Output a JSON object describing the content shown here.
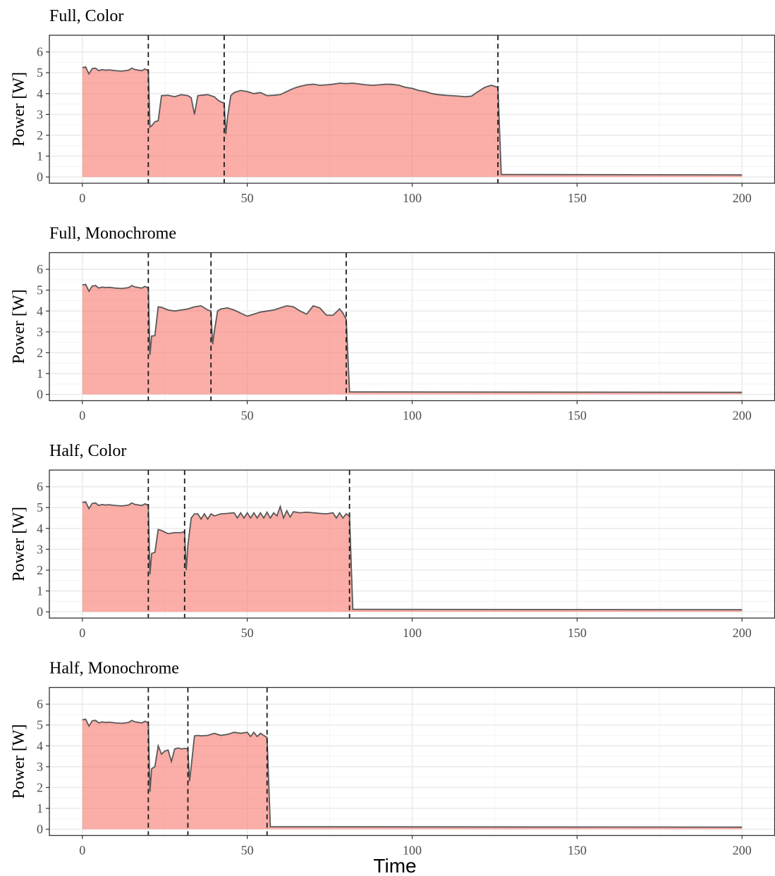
{
  "figure": {
    "xlabel": "Time",
    "colors": {
      "fill": "#f8766d",
      "fill_opacity": 0.6,
      "line": "#595959",
      "vline": "#1a1a1a",
      "grid_major": "#ebebeb",
      "grid_minor": "#f5f5f5",
      "panel_border": "#333333"
    }
  },
  "chart_data": [
    {
      "type": "area",
      "title": "Full, Color",
      "xlabel": "",
      "ylabel": "Power [W]",
      "xlim": [
        -10,
        210
      ],
      "ylim": [
        -0.3,
        6.8
      ],
      "xticks": [
        0,
        50,
        100,
        150,
        200
      ],
      "yticks": [
        0,
        1,
        2,
        3,
        4,
        5,
        6
      ],
      "grid": true,
      "vlines": [
        20,
        43,
        126
      ],
      "series": [
        {
          "x": [
            0,
            1,
            2,
            3,
            4,
            5,
            6,
            7,
            8,
            10,
            12,
            14,
            15,
            16,
            18,
            19,
            20,
            20.5,
            21,
            22,
            23,
            24,
            26,
            28,
            30,
            32,
            33,
            34,
            35,
            36,
            38,
            40,
            41,
            42,
            43,
            43.5,
            44,
            45,
            46,
            48,
            50,
            52,
            54,
            56,
            58,
            60,
            62,
            64,
            66,
            68,
            70,
            72,
            74,
            76,
            78,
            80,
            82,
            84,
            86,
            88,
            90,
            92,
            94,
            96,
            98,
            100,
            102,
            104,
            106,
            108,
            110,
            112,
            114,
            116,
            118,
            120,
            122,
            124,
            125,
            126,
            127,
            200
          ],
          "y": [
            5.25,
            5.28,
            4.95,
            5.2,
            5.22,
            5.1,
            5.15,
            5.12,
            5.14,
            5.1,
            5.08,
            5.12,
            5.22,
            5.15,
            5.1,
            5.18,
            5.1,
            2.4,
            2.45,
            2.65,
            2.7,
            3.9,
            3.92,
            3.85,
            3.95,
            3.9,
            3.8,
            3.0,
            3.9,
            3.92,
            3.95,
            3.85,
            3.7,
            3.6,
            3.55,
            2.05,
            2.85,
            3.9,
            4.05,
            4.15,
            4.1,
            4.0,
            4.05,
            3.9,
            3.92,
            3.95,
            4.1,
            4.25,
            4.35,
            4.42,
            4.45,
            4.4,
            4.42,
            4.45,
            4.5,
            4.48,
            4.5,
            4.46,
            4.42,
            4.4,
            4.42,
            4.45,
            4.44,
            4.4,
            4.3,
            4.25,
            4.15,
            4.1,
            4.0,
            3.95,
            3.92,
            3.9,
            3.88,
            3.85,
            3.88,
            4.1,
            4.3,
            4.4,
            4.35,
            4.3,
            0.12,
            0.1
          ]
        }
      ]
    },
    {
      "type": "area",
      "title": "Full, Monochrome",
      "xlabel": "",
      "ylabel": "Power [W]",
      "xlim": [
        -10,
        210
      ],
      "ylim": [
        -0.3,
        6.8
      ],
      "xticks": [
        0,
        50,
        100,
        150,
        200
      ],
      "yticks": [
        0,
        1,
        2,
        3,
        4,
        5,
        6
      ],
      "grid": true,
      "vlines": [
        20,
        39,
        80
      ],
      "series": [
        {
          "x": [
            0,
            1,
            2,
            3,
            4,
            5,
            6,
            7,
            8,
            10,
            12,
            14,
            15,
            16,
            18,
            19,
            20,
            20.5,
            21,
            22,
            23,
            24,
            26,
            28,
            30,
            32,
            34,
            36,
            38,
            39,
            39.5,
            40,
            41,
            42,
            44,
            46,
            48,
            50,
            52,
            54,
            56,
            58,
            60,
            62,
            64,
            66,
            68,
            70,
            72,
            74,
            76,
            78,
            79,
            80,
            81,
            200
          ],
          "y": [
            5.25,
            5.28,
            4.95,
            5.2,
            5.22,
            5.1,
            5.15,
            5.12,
            5.14,
            5.1,
            5.08,
            5.12,
            5.22,
            5.15,
            5.1,
            5.18,
            5.1,
            1.9,
            2.8,
            2.82,
            4.2,
            4.18,
            4.05,
            4.0,
            4.05,
            4.1,
            4.2,
            4.25,
            4.05,
            4.0,
            2.4,
            3.0,
            4.0,
            4.1,
            4.15,
            4.05,
            3.9,
            3.75,
            3.85,
            3.95,
            4.0,
            4.05,
            4.15,
            4.25,
            4.2,
            4.0,
            3.85,
            4.25,
            4.15,
            3.8,
            3.8,
            4.1,
            3.9,
            3.6,
            0.12,
            0.1
          ]
        }
      ]
    },
    {
      "type": "area",
      "title": "Half, Color",
      "xlabel": "",
      "ylabel": "Power [W]",
      "xlim": [
        -10,
        210
      ],
      "ylim": [
        -0.3,
        6.8
      ],
      "xticks": [
        0,
        50,
        100,
        150,
        200
      ],
      "yticks": [
        0,
        1,
        2,
        3,
        4,
        5,
        6
      ],
      "grid": true,
      "vlines": [
        20,
        31,
        81
      ],
      "series": [
        {
          "x": [
            0,
            1,
            2,
            3,
            4,
            5,
            6,
            7,
            8,
            10,
            12,
            14,
            15,
            16,
            18,
            19,
            20,
            20.5,
            21,
            22,
            23,
            24,
            26,
            28,
            30,
            31,
            31.5,
            32,
            33,
            34,
            35,
            36,
            37,
            38,
            39,
            40,
            42,
            44,
            46,
            47,
            48,
            49,
            50,
            51,
            52,
            53,
            54,
            55,
            56,
            57,
            58,
            59,
            60,
            61,
            62,
            63,
            64,
            66,
            68,
            70,
            72,
            74,
            76,
            77,
            78,
            79,
            80,
            81,
            82,
            200
          ],
          "y": [
            5.25,
            5.28,
            4.95,
            5.2,
            5.22,
            5.1,
            5.15,
            5.12,
            5.14,
            5.1,
            5.08,
            5.12,
            5.22,
            5.15,
            5.1,
            5.18,
            5.1,
            1.8,
            2.8,
            2.85,
            3.95,
            3.9,
            3.75,
            3.8,
            3.8,
            3.85,
            2.0,
            3.2,
            4.5,
            4.7,
            4.7,
            4.45,
            4.7,
            4.45,
            4.7,
            4.6,
            4.7,
            4.72,
            4.75,
            4.5,
            4.75,
            4.5,
            4.75,
            4.5,
            4.75,
            4.5,
            4.75,
            4.5,
            4.78,
            4.5,
            4.75,
            4.6,
            5.05,
            4.5,
            4.85,
            4.55,
            4.8,
            4.75,
            4.78,
            4.75,
            4.72,
            4.7,
            4.75,
            4.5,
            4.75,
            4.5,
            4.7,
            4.6,
            0.12,
            0.1
          ]
        }
      ]
    },
    {
      "type": "area",
      "title": "Half, Monochrome",
      "xlabel": "Time",
      "ylabel": "Power [W]",
      "xlim": [
        -10,
        210
      ],
      "ylim": [
        -0.3,
        6.8
      ],
      "xticks": [
        0,
        50,
        100,
        150,
        200
      ],
      "yticks": [
        0,
        1,
        2,
        3,
        4,
        5,
        6
      ],
      "grid": true,
      "vlines": [
        20,
        32,
        56
      ],
      "series": [
        {
          "x": [
            0,
            1,
            2,
            3,
            4,
            5,
            6,
            7,
            8,
            10,
            12,
            14,
            15,
            16,
            18,
            19,
            20,
            20.5,
            21,
            22,
            23,
            24,
            25,
            26,
            27,
            28,
            29,
            30,
            31,
            32,
            32.5,
            33,
            34,
            35,
            36,
            38,
            40,
            42,
            44,
            46,
            48,
            50,
            51,
            52,
            53,
            54,
            55,
            56,
            57,
            200
          ],
          "y": [
            5.25,
            5.28,
            4.95,
            5.2,
            5.22,
            5.1,
            5.15,
            5.12,
            5.14,
            5.1,
            5.08,
            5.12,
            5.22,
            5.15,
            5.1,
            5.18,
            5.1,
            1.8,
            2.9,
            3.0,
            4.0,
            3.6,
            3.75,
            3.8,
            3.25,
            3.85,
            3.9,
            3.85,
            3.88,
            3.85,
            2.3,
            3.0,
            4.48,
            4.5,
            4.48,
            4.5,
            4.6,
            4.5,
            4.55,
            4.65,
            4.6,
            4.65,
            4.45,
            4.65,
            4.45,
            4.6,
            4.5,
            4.4,
            0.12,
            0.1
          ]
        }
      ]
    }
  ]
}
